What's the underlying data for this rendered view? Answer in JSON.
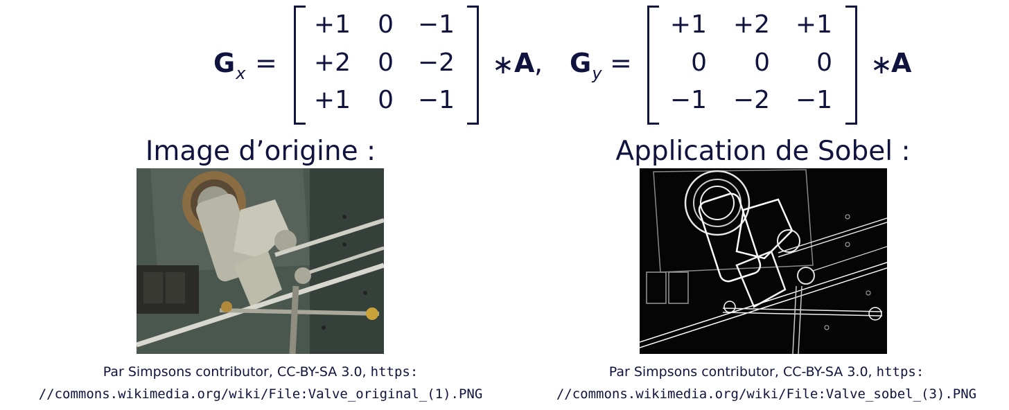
{
  "formula": {
    "gx": {
      "symbol": "G",
      "subscript": "x",
      "equals": "=",
      "matrix": [
        [
          "+1",
          "0",
          "−1"
        ],
        [
          "+2",
          "0",
          "−2"
        ],
        [
          "+1",
          "0",
          "−1"
        ]
      ],
      "operator": "∗",
      "operand": "A",
      "separator": ","
    },
    "gy": {
      "symbol": "G",
      "subscript": "y",
      "equals": "=",
      "matrix": [
        [
          "+1",
          "+2",
          "+1"
        ],
        [
          "0",
          "0",
          "0"
        ],
        [
          "−1",
          "−2",
          "−1"
        ]
      ],
      "operator": "∗",
      "operand": "A"
    }
  },
  "left": {
    "heading": "Image d’origine :",
    "caption_line1_text": "Par Simpsons contributor, CC-BY-SA 3.0, ",
    "caption_line1_url": "https:",
    "caption_line2_url": "//commons.wikimedia.org/wiki/File:Valve_original_(1).PNG"
  },
  "right": {
    "heading": "Application de Sobel :",
    "caption_line1_text": "Par Simpsons contributor, CC-BY-SA 3.0, ",
    "caption_line1_url": "https:",
    "caption_line2_url": "//commons.wikimedia.org/wiki/File:Valve_sobel_(3).PNG"
  },
  "colors": {
    "text": "#10133d",
    "background": "#ffffff"
  }
}
